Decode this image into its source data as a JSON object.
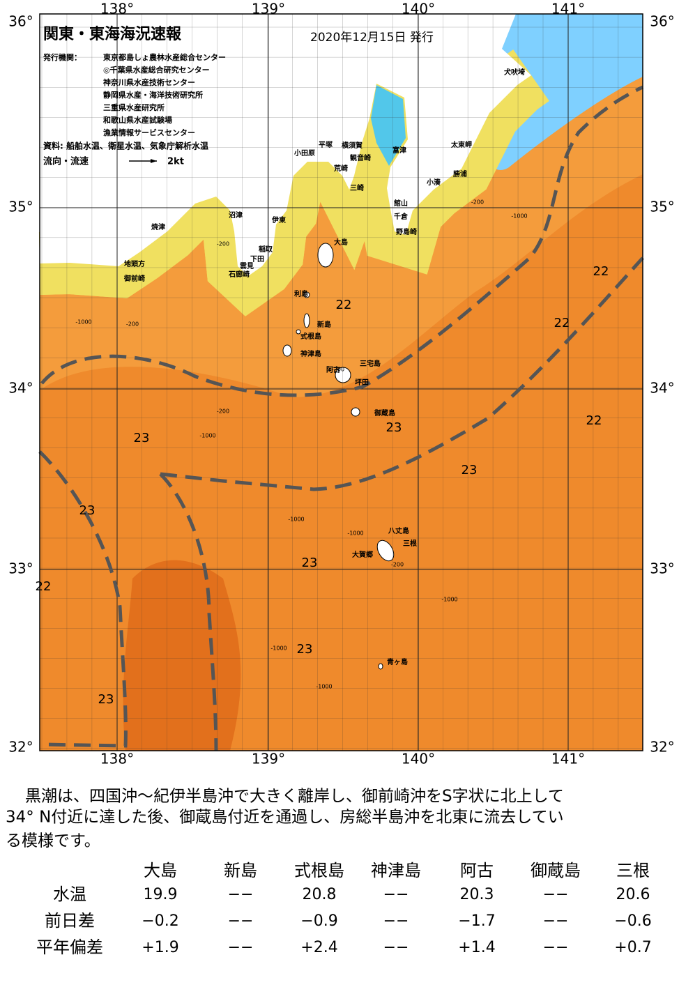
{
  "header": {
    "title": "関東・東海海況速報",
    "issued": "2020年12月15日 発行",
    "agency_label": "発行機関：",
    "agencies": [
      "東京都島しょ農林水産総合センター",
      "◎千葉県水産総合研究センター",
      "神奈川県水産技術センター",
      "静岡県水産・海洋技術研究所",
      "三重県水産研究所",
      "和歌山県水産試験場",
      "漁業情報サービスセンター"
    ],
    "sources": "資料: 船舶水温、衛星水温、気象庁解析水温",
    "flow_label": "流向・流速",
    "flow_scale": "2kt"
  },
  "map": {
    "lat_labels": [
      "36°",
      "35°",
      "34°",
      "33°",
      "32°"
    ],
    "lon_labels": [
      "138°",
      "139°",
      "140°",
      "141°"
    ],
    "places": [
      "犬吠埼",
      "太東岬",
      "勝浦",
      "小湊",
      "富津",
      "館山",
      "千倉",
      "野島崎",
      "横須賀",
      "観音崎",
      "平塚",
      "荒崎",
      "三崎",
      "小田原",
      "大島",
      "伊東",
      "沼津",
      "焼津",
      "稲取",
      "下田",
      "雲見",
      "石廊崎",
      "地頭方",
      "御前崎",
      "利島",
      "新島",
      "式根島",
      "神津島",
      "三宅島",
      "阿古",
      "坪田",
      "御蔵島",
      "八丈島",
      "三根",
      "大賀郷",
      "青ヶ島"
    ],
    "temperature_labels": [
      "22",
      "22",
      "22",
      "22",
      "22",
      "23",
      "23",
      "23",
      "23",
      "23",
      "23",
      "23"
    ],
    "depth_labels": [
      "-1000",
      "-1000",
      "-1000",
      "-1000",
      "-1000",
      "-1000",
      "-1000",
      "-1000",
      "-200",
      "-200",
      "-200",
      "-200",
      "-200",
      "-200"
    ]
  },
  "description": [
    "黒潮は、四国沖～紀伊半島沖で大きく離岸し、御前崎沖をS字状に北上して",
    "34° N付近に達した後、御蔵島付近を通過し、房総半島沖を北東に流去してい",
    "る模様です。"
  ],
  "table": {
    "columns": [
      "大島",
      "新島",
      "式根島",
      "神津島",
      "阿古",
      "御蔵島",
      "三根"
    ],
    "rows": [
      {
        "label": "水温",
        "cells": [
          "19.9",
          "−−",
          "20.8",
          "−−",
          "20.3",
          "−−",
          "20.6"
        ]
      },
      {
        "label": "前日差",
        "cells": [
          "−0.2",
          "−−",
          "−0.9",
          "−−",
          "−1.7",
          "−−",
          "−0.6"
        ]
      },
      {
        "label": "平年偏差",
        "cells": [
          "+1.9",
          "−−",
          "+2.4",
          "−−",
          "+1.4",
          "−−",
          "+0.7"
        ]
      }
    ]
  }
}
